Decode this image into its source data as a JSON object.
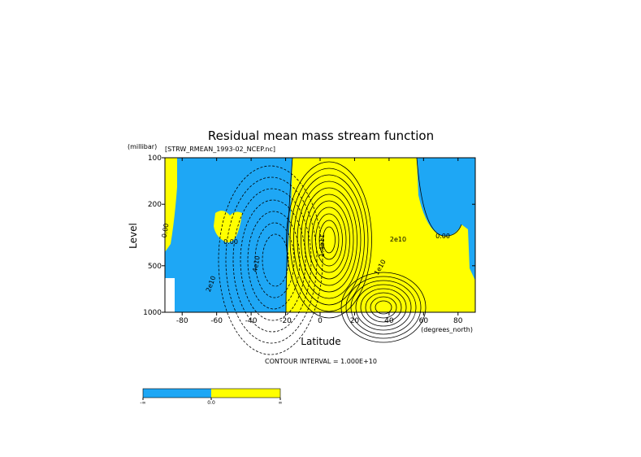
{
  "chart_data": {
    "type": "contour",
    "title": "Residual mean mass stream function",
    "subtitle": "[STRW_RMEAN_1993-02_NCEP.nc]",
    "x_label": "Latitude",
    "x_units": "(degrees_north)",
    "y_label": "Level",
    "y_units": "(millibar)",
    "xlim": [
      -90,
      90
    ],
    "xticks": [
      -80,
      -60,
      -40,
      -20,
      0,
      20,
      40,
      60,
      80
    ],
    "ylim": [
      100,
      1000
    ],
    "yticks": [
      100,
      200,
      500,
      1000
    ],
    "y_log": true,
    "y_inverted": true,
    "negative_color": "#1ea7f5",
    "positive_color": "#ffff00",
    "contour_labels": [
      "0.00",
      "0.00",
      "0.00",
      "2e10",
      "4e10",
      "1.4e11",
      "2e10",
      "1e10"
    ],
    "footnote": "CONTOUR INTERVAL = 1.000E+10",
    "colorbar_labels": [
      "-∞",
      "0.0",
      "∞"
    ]
  }
}
